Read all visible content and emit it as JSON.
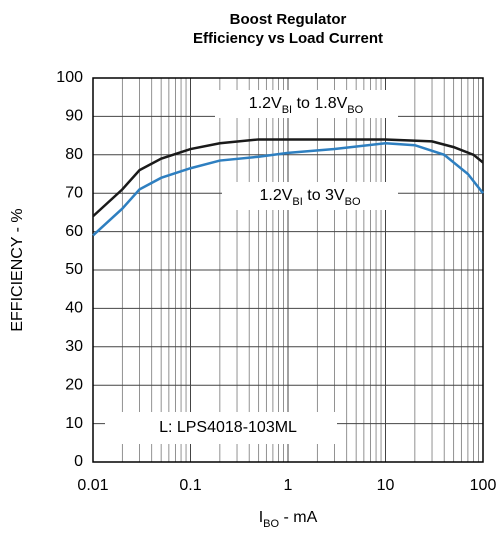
{
  "chart_data": {
    "type": "line",
    "title_lines": [
      "Boost Regulator",
      "Efficiency vs Load Current"
    ],
    "xlabel_parts": [
      "I",
      "BO",
      " - mA"
    ],
    "ylabel": "EFFICIENCY - %",
    "xscale": "log",
    "xlim": [
      0.01,
      100
    ],
    "xticks": [
      0.01,
      0.1,
      1,
      10,
      100
    ],
    "ylim": [
      0,
      100
    ],
    "yticks": [
      0,
      10,
      20,
      30,
      40,
      50,
      60,
      70,
      80,
      90,
      100
    ],
    "grid": true,
    "series": [
      {
        "name_parts": [
          "1.2V",
          "BI",
          " to 1.8V",
          "BO"
        ],
        "color": "#1a1a1a",
        "x": [
          0.01,
          0.02,
          0.03,
          0.05,
          0.1,
          0.2,
          0.5,
          1,
          5,
          10,
          30,
          50,
          80,
          100
        ],
        "values": [
          64,
          71,
          76,
          79,
          81.5,
          83,
          84,
          84,
          84,
          84,
          83.5,
          82,
          80,
          78
        ]
      },
      {
        "name_parts": [
          "1.2V",
          "BI",
          " to 3V",
          "BO"
        ],
        "color": "#2e7fc0",
        "x": [
          0.01,
          0.02,
          0.03,
          0.05,
          0.1,
          0.2,
          0.5,
          1,
          3,
          10,
          20,
          40,
          70,
          100
        ],
        "values": [
          59,
          66,
          71,
          74,
          76.5,
          78.5,
          79.5,
          80.5,
          81.5,
          83,
          82.5,
          80,
          75,
          70
        ]
      }
    ],
    "annotations": [
      "L: LPS4018-103ML"
    ]
  }
}
